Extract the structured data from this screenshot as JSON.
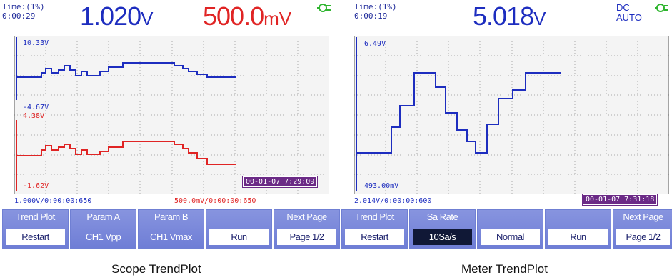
{
  "scope": {
    "time_label": "Time:(1%)",
    "time_value": "0:00:29",
    "ch1_value": "1.020",
    "ch1_unit": "V",
    "ch2_value": "500.0",
    "ch2_unit": "mV",
    "ch1_max": "10.33V",
    "ch1_min": "-4.67V",
    "ch2_max": "4.38V",
    "ch2_min": "-1.62V",
    "timestamp": "00-01-07 7:29:09",
    "ch1_scale": "1.000V/0:00:00:650",
    "ch2_scale": "500.0mV/0:00:00:650",
    "softkeys": [
      {
        "top": "Trend Plot",
        "bottom": "Restart"
      },
      {
        "top": "Param A",
        "bottom": "CH1 Vpp"
      },
      {
        "top": "Param B",
        "bottom": "CH1 Vmax"
      },
      {
        "top": "",
        "bottom": "Run"
      },
      {
        "top": "Next Page",
        "bottom": "Page 1/2"
      }
    ],
    "caption": "Scope TrendPlot"
  },
  "meter": {
    "time_label": "Time:(1%)",
    "time_value": "0:00:19",
    "value": "5.018",
    "unit": "V",
    "mode_top": "DC",
    "mode_bottom": "AUTO",
    "max": "6.49V",
    "min": "493.00mV",
    "timestamp": "00-01-07 7:31:18",
    "scale": "2.014V/0:00:00:600",
    "softkeys": [
      {
        "top": "Trend Plot",
        "bottom": "Restart"
      },
      {
        "top": "Sa Rate",
        "bottom": "10Sa/s"
      },
      {
        "top": "",
        "bottom": "Normal"
      },
      {
        "top": "",
        "bottom": "Run"
      },
      {
        "top": "Next Page",
        "bottom": "Page 1/2"
      }
    ],
    "caption": "Meter TrendPlot"
  },
  "colors": {
    "ch1": "#1d2dbf",
    "ch2": "#e02424",
    "softkey": "#7786da",
    "timestamp_bg": "#6b2a86",
    "connector": "#2fb52f"
  }
}
